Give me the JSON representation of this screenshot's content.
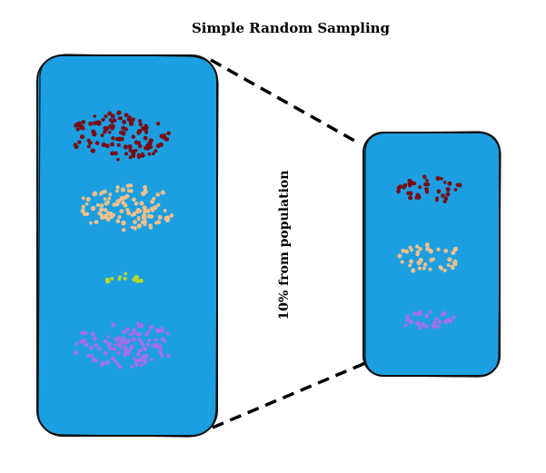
{
  "diagram": {
    "title": "Simple Random Sampling",
    "annotation": "10% from population",
    "colors": {
      "panel_fill": "#1b9fe0",
      "panel_stroke": "#111111",
      "connector": "#000000",
      "group_1": "#7a0a12",
      "group_2": "#f5c08c",
      "group_3": "#b8d62a",
      "group_4": "#a070e8"
    },
    "population": {
      "name": "population",
      "groups": [
        {
          "name": "group_1",
          "color_key": "group_1",
          "count": 120
        },
        {
          "name": "group_2",
          "color_key": "group_2",
          "count": 110
        },
        {
          "name": "group_3",
          "color_key": "group_3",
          "count": 12
        },
        {
          "name": "group_4",
          "color_key": "group_4",
          "count": 110
        }
      ]
    },
    "sample": {
      "name": "sample",
      "groups": [
        {
          "name": "group_1",
          "color_key": "group_1",
          "count": 40
        },
        {
          "name": "group_2",
          "color_key": "group_2",
          "count": 40
        },
        {
          "name": "group_4",
          "color_key": "group_4",
          "count": 28
        }
      ]
    }
  }
}
